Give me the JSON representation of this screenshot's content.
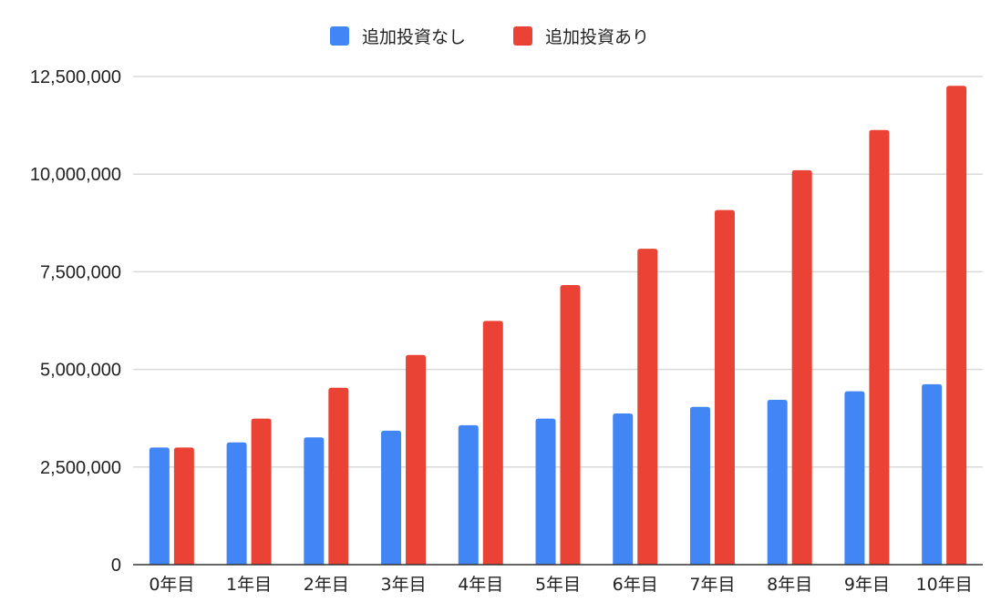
{
  "chart_data": {
    "type": "bar",
    "title": "",
    "xlabel": "",
    "ylabel": "",
    "categories": [
      "0年目",
      "1年目",
      "2年目",
      "3年目",
      "4年目",
      "5年目",
      "6年目",
      "7年目",
      "8年目",
      "9年目",
      "10年目"
    ],
    "series": [
      {
        "name": "追加投資なし",
        "color": "#4285f4",
        "values": [
          3000000,
          3130000,
          3260000,
          3430000,
          3570000,
          3740000,
          3870000,
          4040000,
          4220000,
          4440000,
          4620000
        ]
      },
      {
        "name": "追加投資あり",
        "color": "#ea4335",
        "values": [
          3000000,
          3740000,
          4530000,
          5370000,
          6240000,
          7160000,
          8090000,
          9080000,
          10100000,
          11130000,
          12260000
        ]
      }
    ],
    "ylim": [
      0,
      12500000
    ],
    "yticks": [
      0,
      2500000,
      5000000,
      7500000,
      10000000,
      12500000
    ],
    "ytick_labels": [
      "0",
      "2,500,000",
      "5,000,000",
      "7,500,000",
      "10,000,000",
      "12,500,000"
    ],
    "grid": true,
    "legend_position": "top-center"
  }
}
